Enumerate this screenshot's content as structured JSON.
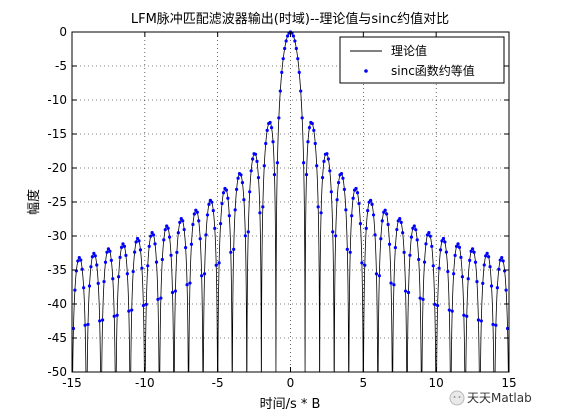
{
  "chart_data": {
    "type": "line",
    "title": "LFM脉冲匹配滤波器输出(时域)--理论值与sinc约值对比",
    "xlabel": "时间/s * B",
    "ylabel": "幅度",
    "xlim": [
      -15,
      15
    ],
    "ylim": [
      -50,
      0
    ],
    "xticks": [
      -15,
      -10,
      -5,
      0,
      5,
      10,
      15
    ],
    "yticks": [
      0,
      -5,
      -10,
      -15,
      -20,
      -25,
      -30,
      -35,
      -40,
      -45,
      -50
    ],
    "grid": true,
    "legend_position": "top-right",
    "series": [
      {
        "name": "理论值",
        "style": "solid-line",
        "color": "#000000",
        "model": "20*log10(|sin(pi*x)/(pi*x)|) sampled densely on [-15, 15], clipped at -50 dB"
      },
      {
        "name": "sinc函数约等值",
        "style": "dot-markers",
        "color": "#0000ff",
        "model": "20*log10(|sinc(x)|) at x = -15 + 0.1*k, k = 0..300, clipped at -50 dB"
      }
    ],
    "peak": {
      "x": 0,
      "y": 0
    },
    "sidelobe_peaks_dB": [
      {
        "x": 1.43,
        "y": -13.26
      },
      {
        "x": 2.46,
        "y": -17.83
      },
      {
        "x": 3.47,
        "y": -20.79
      },
      {
        "x": 4.48,
        "y": -23.0
      },
      {
        "x": 5.48,
        "y": -24.7
      },
      {
        "x": 10.5,
        "y": -30.3
      },
      {
        "x": 14.5,
        "y": -33.2
      }
    ]
  },
  "watermark": {
    "text": "天天Matlab"
  }
}
